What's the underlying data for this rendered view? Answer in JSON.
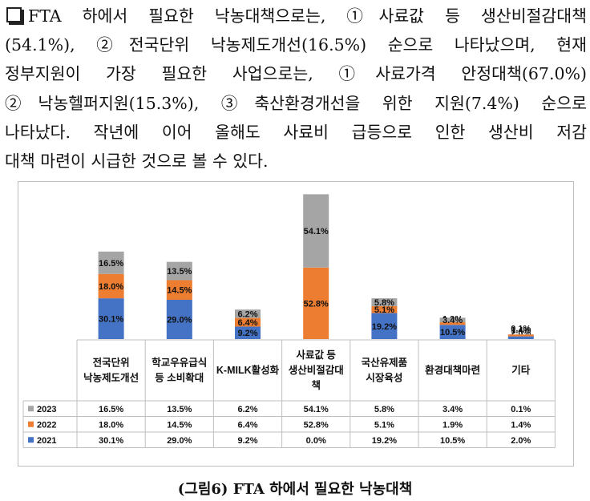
{
  "paragraph": {
    "lines": [
      "FTA 하에서 필요한 낙농대책으로는, ①사료값 등 생산비절감대책",
      "(54.1%), ②전국단위 낙농제도개선(16.5%) 순으로 나타났으며, 현재",
      "정부지원이 가장 필요한 사업으로는, ①사료가격 안정대책(67.0%)",
      "②낙농헬퍼지원(15.3%), ③축산환경개선을 위한 지원(7.4%) 순으로",
      "나타났다. 작년에 이어 올해도 사료비 급등으로 인한 생산비 저감",
      "대책 마련이 시급한 것으로 볼 수 있다."
    ]
  },
  "caption": "(그림6) FTA 하에서 필요한 낙농대책",
  "chart_data": {
    "type": "bar",
    "stacked": true,
    "categories": [
      "전국단위 낙농제도개선",
      "학교우유급식 등 소비확대",
      "K-MILK활성화",
      "사료값 등 생산비절감대책",
      "국산유제품 시장육성",
      "환경대책마련",
      "기타"
    ],
    "category_lines": [
      [
        "전국단위",
        "낙농제도개선"
      ],
      [
        "학교우유급식",
        "등 소비확대"
      ],
      [
        "K-MILK활성화"
      ],
      [
        "사료값 등",
        "생산비절감대",
        "책"
      ],
      [
        "국산유제품",
        "시장육성"
      ],
      [
        "환경대책마련"
      ],
      [
        "기타"
      ]
    ],
    "series": [
      {
        "name": "2021",
        "color": "#4472c4",
        "values": [
          30.1,
          29.0,
          9.2,
          0.0,
          19.2,
          10.5,
          2.0
        ],
        "labels": [
          "30.1%",
          "29.0%",
          "9.2%",
          "0.0%",
          "19.2%",
          "10.5%",
          "2.0%"
        ]
      },
      {
        "name": "2022",
        "color": "#ed7d31",
        "values": [
          18.0,
          14.5,
          6.4,
          52.8,
          5.1,
          1.9,
          1.4
        ],
        "labels": [
          "18.0%",
          "14.5%",
          "6.4%",
          "52.8%",
          "5.1%",
          "1.9%",
          "1.4%"
        ]
      },
      {
        "name": "2023",
        "color": "#a5a5a5",
        "values": [
          16.5,
          13.5,
          6.2,
          54.1,
          5.8,
          3.4,
          0.1
        ],
        "labels": [
          "16.5%",
          "13.5%",
          "6.2%",
          "54.1%",
          "5.8%",
          "3.4%",
          "0.1%"
        ]
      }
    ],
    "table_row_order": [
      "2023",
      "2022",
      "2021"
    ],
    "legend": "data-table",
    "grid": false,
    "title": "",
    "xlabel": "",
    "ylabel": ""
  }
}
